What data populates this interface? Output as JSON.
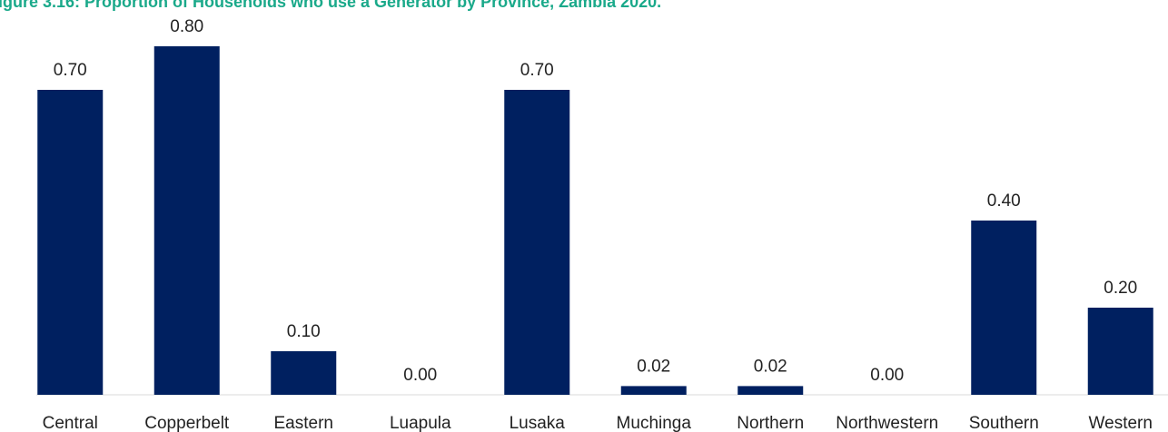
{
  "chart_data": {
    "type": "bar",
    "title": "igure 3.16: Proportion of Households who use a Generator by Province, Zambia 2020.",
    "categories": [
      "Central",
      "Copperbelt",
      "Eastern",
      "Luapula",
      "Lusaka",
      "Muchinga",
      "Northern",
      "Northwestern",
      "Southern",
      "Western"
    ],
    "values": [
      0.7,
      0.8,
      0.1,
      0,
      0.7,
      0.02,
      0.02,
      0,
      0.4,
      0.2
    ],
    "value_labels": [
      "0.70",
      "0.80",
      "0.10",
      "0.00",
      "0.70",
      "0.02",
      "0.02",
      "0.00",
      "0.40",
      "0.20"
    ],
    "color": "#002060"
  }
}
